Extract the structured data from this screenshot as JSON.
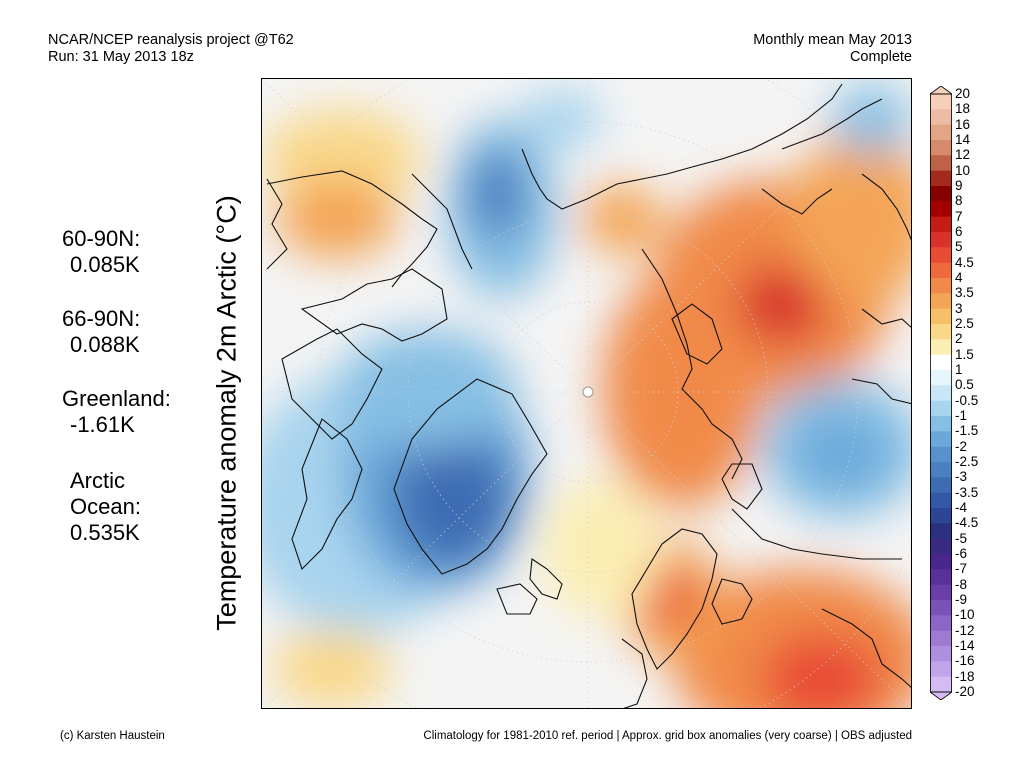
{
  "header": {
    "project": "NCAR/NCEP reanalysis project @T62",
    "run": "Run: 31 May 2013 18z",
    "period": "Monthly mean May 2013",
    "status": "Complete"
  },
  "stats": {
    "s1_label": "60-90N:",
    "s1_value": "0.085K",
    "s2_label": "66-90N:",
    "s2_value": "0.088K",
    "s3_label": "Greenland:",
    "s3_value": "-1.61K",
    "s4_label_1": "Arctic",
    "s4_label_2": "Ocean:",
    "s4_value": "0.535K"
  },
  "axis": {
    "ylabel": "Temperature anomaly 2m Arctic (°C)"
  },
  "colorbar": {
    "ticks": [
      "20",
      "18",
      "16",
      "14",
      "12",
      "10",
      "9",
      "8",
      "7",
      "6",
      "5",
      "4.5",
      "4",
      "3.5",
      "3",
      "2.5",
      "2",
      "1.5",
      "1",
      "0.5",
      "-0.5",
      "-1",
      "-1.5",
      "-2",
      "-2.5",
      "-3",
      "-3.5",
      "-4",
      "-4.5",
      "-5",
      "-6",
      "-7",
      "-8",
      "-9",
      "-10",
      "-12",
      "-14",
      "-16",
      "-18",
      "-20"
    ],
    "colors": [
      "#f6cfb9",
      "#eebca4",
      "#e2a586",
      "#d48a6b",
      "#bd6247",
      "#a32b1d",
      "#870000",
      "#a50000",
      "#c51c15",
      "#d8322a",
      "#e84c34",
      "#ee6a3c",
      "#f18a48",
      "#f4a455",
      "#f7bf68",
      "#f9d88a",
      "#fbeeb3",
      "#ffffff",
      "#e6f4fc",
      "#c8e6f6",
      "#a8d4ee",
      "#86bfe4",
      "#6aa8da",
      "#5792cc",
      "#4a7fc0",
      "#3e6cb3",
      "#3458a5",
      "#2c4595",
      "#2a3280",
      "#3a2a80",
      "#4a268c",
      "#5a3099",
      "#6a40a8",
      "#7a52b8",
      "#8c66c6",
      "#9e7ad2",
      "#b08ee0",
      "#c2a4ea",
      "#d4bcf3"
    ]
  },
  "footer": {
    "credit": "(c) Karsten Haustein",
    "note": "Climatology for 1981-2010 ref. period | Approx. grid box anomalies (very coarse) | OBS adjusted"
  }
}
